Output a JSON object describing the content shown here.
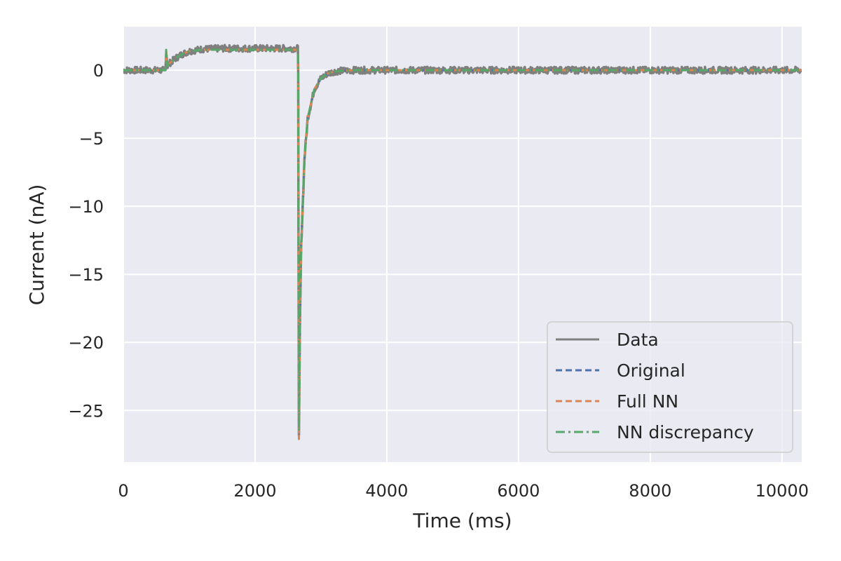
{
  "chart_data": {
    "type": "line",
    "title": "",
    "xlabel": "Time (ms)",
    "ylabel": "Current (nA)",
    "xlim": [
      0,
      10300
    ],
    "ylim": [
      -28.8,
      3.2
    ],
    "xticks": [
      0,
      2000,
      4000,
      6000,
      8000,
      10000
    ],
    "xtick_labels": [
      "0",
      "2000",
      "4000",
      "6000",
      "8000",
      "10000"
    ],
    "yticks": [
      0,
      -5,
      -10,
      -15,
      -20,
      -25
    ],
    "ytick_labels": [
      "0",
      "−5",
      "−10",
      "−15",
      "−20",
      "−25"
    ],
    "grid": true,
    "legend_position": "lower-right",
    "series": [
      {
        "name": "Data",
        "color": "#7f7f7f",
        "style": "solid",
        "noisy": true,
        "x": [
          0,
          640,
          650,
          670,
          700,
          800,
          900,
          1000,
          1200,
          1500,
          2000,
          2500,
          2640,
          2650,
          2655,
          2660,
          2665,
          2670,
          2680,
          2700,
          2750,
          2800,
          2900,
          3000,
          3100,
          3200,
          3300,
          3500,
          4000,
          6000,
          8000,
          10300
        ],
        "y": [
          0,
          0,
          1.4,
          0.3,
          0.5,
          0.9,
          1.2,
          1.4,
          1.55,
          1.6,
          1.6,
          1.6,
          1.6,
          1.6,
          0,
          -15,
          -27,
          -25,
          -19,
          -13,
          -6.5,
          -3.5,
          -1.4,
          -0.6,
          -0.25,
          -0.1,
          -0.05,
          0,
          0,
          0,
          0,
          0
        ]
      },
      {
        "name": "Original",
        "color": "#4c72b0",
        "style": "dashed",
        "x": [
          0,
          640,
          650,
          670,
          700,
          800,
          900,
          1000,
          1200,
          1500,
          2000,
          2500,
          2640,
          2650,
          2655,
          2660,
          2665,
          2670,
          2680,
          2700,
          2750,
          2800,
          2900,
          3000,
          3100,
          3200,
          3300,
          3500,
          4000,
          6000,
          8000,
          10300
        ],
        "y": [
          0,
          0,
          1.4,
          0.3,
          0.5,
          0.9,
          1.2,
          1.4,
          1.5,
          1.5,
          1.5,
          1.5,
          1.5,
          1.5,
          0,
          -15,
          -26.8,
          -25,
          -19,
          -13,
          -6.5,
          -3.5,
          -1.4,
          -0.6,
          -0.25,
          -0.1,
          -0.05,
          0,
          0,
          0,
          0,
          0
        ]
      },
      {
        "name": "Full NN",
        "color": "#dd8452",
        "style": "dashed",
        "x": [
          0,
          640,
          650,
          670,
          700,
          800,
          900,
          1000,
          1200,
          1500,
          2000,
          2500,
          2640,
          2650,
          2655,
          2660,
          2665,
          2670,
          2680,
          2700,
          2750,
          2800,
          2900,
          3000,
          3100,
          3200,
          3300,
          3500,
          4000,
          6000,
          8000,
          10300
        ],
        "y": [
          0,
          0,
          1.4,
          0.3,
          0.5,
          0.9,
          1.2,
          1.4,
          1.5,
          1.5,
          1.5,
          1.5,
          1.5,
          1.5,
          0,
          -15,
          -27.1,
          -25,
          -19,
          -13,
          -6.5,
          -3.5,
          -1.4,
          -0.6,
          -0.25,
          -0.1,
          -0.05,
          0,
          0,
          0,
          0,
          0
        ]
      },
      {
        "name": "NN discrepancy",
        "color": "#55a868",
        "style": "dashdot",
        "x": [
          0,
          640,
          650,
          670,
          700,
          800,
          900,
          1000,
          1200,
          1500,
          2000,
          2500,
          2640,
          2650,
          2655,
          2660,
          2665,
          2670,
          2680,
          2700,
          2750,
          2800,
          2900,
          3000,
          3100,
          3200,
          3300,
          3500,
          4000,
          6000,
          8000,
          10300
        ],
        "y": [
          0,
          0,
          1.5,
          0.3,
          0.5,
          0.9,
          1.2,
          1.4,
          1.5,
          1.5,
          1.5,
          1.5,
          1.5,
          1.5,
          0,
          -15,
          -26.5,
          -25,
          -19,
          -13,
          -6.5,
          -3.5,
          -1.4,
          -0.6,
          -0.25,
          -0.1,
          -0.05,
          0,
          0,
          0,
          0,
          0
        ]
      }
    ]
  },
  "colors": {
    "plot_background": "#eaeaf2",
    "grid": "#ffffff",
    "text": "#262626"
  }
}
